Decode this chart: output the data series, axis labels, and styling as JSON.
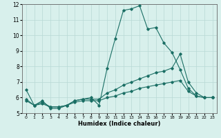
{
  "title": "",
  "xlabel": "Humidex (Indice chaleur)",
  "ylabel": "",
  "xlim": [
    -0.5,
    23.5
  ],
  "ylim": [
    5,
    12
  ],
  "yticks": [
    5,
    6,
    7,
    8,
    9,
    10,
    11,
    12
  ],
  "xticks": [
    0,
    1,
    2,
    3,
    4,
    5,
    6,
    7,
    8,
    9,
    10,
    11,
    12,
    13,
    14,
    15,
    16,
    17,
    18,
    19,
    20,
    21,
    22,
    23
  ],
  "bg_color": "#d8f0ec",
  "grid_color": "#b8d8d4",
  "line_color": "#1a6e64",
  "line1_x": [
    0,
    1,
    2,
    3,
    4,
    5,
    6,
    7,
    8,
    9,
    10,
    11,
    12,
    13,
    14,
    15,
    16,
    17,
    18,
    19,
    20,
    21,
    22,
    23
  ],
  "line1_y": [
    6.5,
    5.5,
    5.8,
    5.3,
    5.3,
    5.5,
    5.8,
    5.9,
    6.0,
    5.5,
    7.9,
    9.8,
    11.6,
    11.7,
    11.9,
    10.4,
    10.5,
    9.5,
    8.9,
    7.8,
    6.6,
    6.1,
    6.0,
    6.0
  ],
  "line2_x": [
    0,
    1,
    2,
    3,
    4,
    5,
    6,
    7,
    8,
    9,
    10,
    11,
    12,
    13,
    14,
    15,
    16,
    17,
    18,
    19,
    20,
    21,
    22,
    23
  ],
  "line2_y": [
    5.9,
    5.5,
    5.7,
    5.4,
    5.4,
    5.5,
    5.8,
    5.9,
    5.9,
    5.9,
    6.3,
    6.5,
    6.8,
    7.0,
    7.2,
    7.4,
    7.6,
    7.7,
    7.9,
    8.8,
    7.0,
    6.3,
    6.0,
    6.0
  ],
  "line3_x": [
    0,
    1,
    2,
    3,
    4,
    5,
    6,
    7,
    8,
    9,
    10,
    11,
    12,
    13,
    14,
    15,
    16,
    17,
    18,
    19,
    20,
    21,
    22,
    23
  ],
  "line3_y": [
    5.8,
    5.5,
    5.6,
    5.4,
    5.4,
    5.5,
    5.7,
    5.8,
    5.8,
    5.8,
    6.0,
    6.1,
    6.3,
    6.4,
    6.6,
    6.7,
    6.8,
    6.9,
    7.0,
    7.1,
    6.4,
    6.1,
    6.0,
    6.0
  ],
  "xlabel_fontsize": 6.0,
  "ytick_fontsize": 5.5,
  "xtick_fontsize": 4.5
}
